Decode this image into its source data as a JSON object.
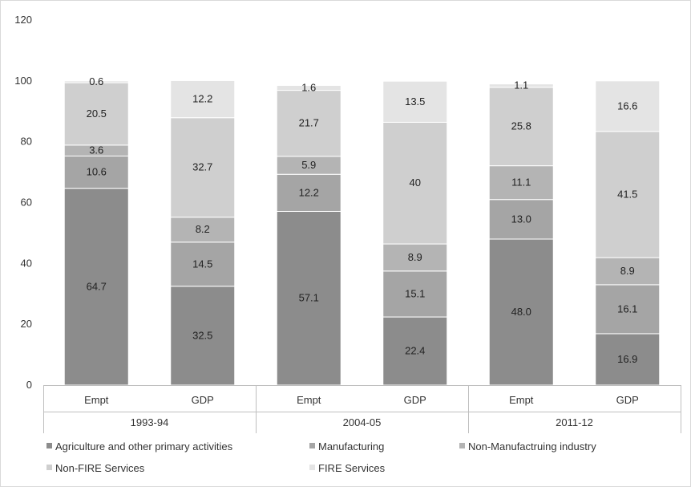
{
  "chart_data": {
    "type": "bar",
    "stacked": true,
    "ylim": [
      0,
      120
    ],
    "yticks": [
      0,
      20,
      40,
      60,
      80,
      100,
      120
    ],
    "grid": false,
    "legend_position": "bottom",
    "groups": [
      "1993-94",
      "2004-05",
      "2011-12"
    ],
    "subcategories": [
      "Empt",
      "GDP"
    ],
    "categories": [
      "Empt",
      "GDP",
      "Empt",
      "GDP",
      "Empt",
      "GDP"
    ],
    "series": [
      {
        "name": "Agriculture and other primary activities",
        "color": "#8c8c8c",
        "values": [
          64.7,
          32.5,
          57.1,
          22.4,
          48.0,
          16.9
        ],
        "labels": [
          "64.7",
          "32.5",
          "57.1",
          "22.4",
          "48.0",
          "16.9"
        ]
      },
      {
        "name": "Manufacturing",
        "color": "#a5a5a5",
        "values": [
          10.6,
          14.5,
          12.2,
          15.1,
          13.0,
          16.1
        ],
        "labels": [
          "10.6",
          "14.5",
          "12.2",
          "15.1",
          "13.0",
          "16.1"
        ]
      },
      {
        "name": "Non-Manufactruing industry",
        "color": "#b4b4b4",
        "values": [
          3.6,
          8.2,
          5.9,
          8.9,
          11.1,
          8.9
        ],
        "labels": [
          "3.6",
          "8.2",
          "5.9",
          "8.9",
          "11.1",
          "8.9"
        ]
      },
      {
        "name": "Non-FIRE Services",
        "color": "#cfcfcf",
        "values": [
          20.5,
          32.7,
          21.7,
          40,
          25.8,
          41.5
        ],
        "labels": [
          "20.5",
          "32.7",
          "21.7",
          "40",
          "25.8",
          "41.5"
        ]
      },
      {
        "name": "FIRE Services",
        "color": "#e4e4e4",
        "values": [
          0.6,
          12.2,
          1.6,
          13.5,
          1.1,
          16.6
        ],
        "labels": [
          "0.6",
          "12.2",
          "1.6",
          "13.5",
          "1.1",
          "16.6"
        ]
      }
    ]
  }
}
